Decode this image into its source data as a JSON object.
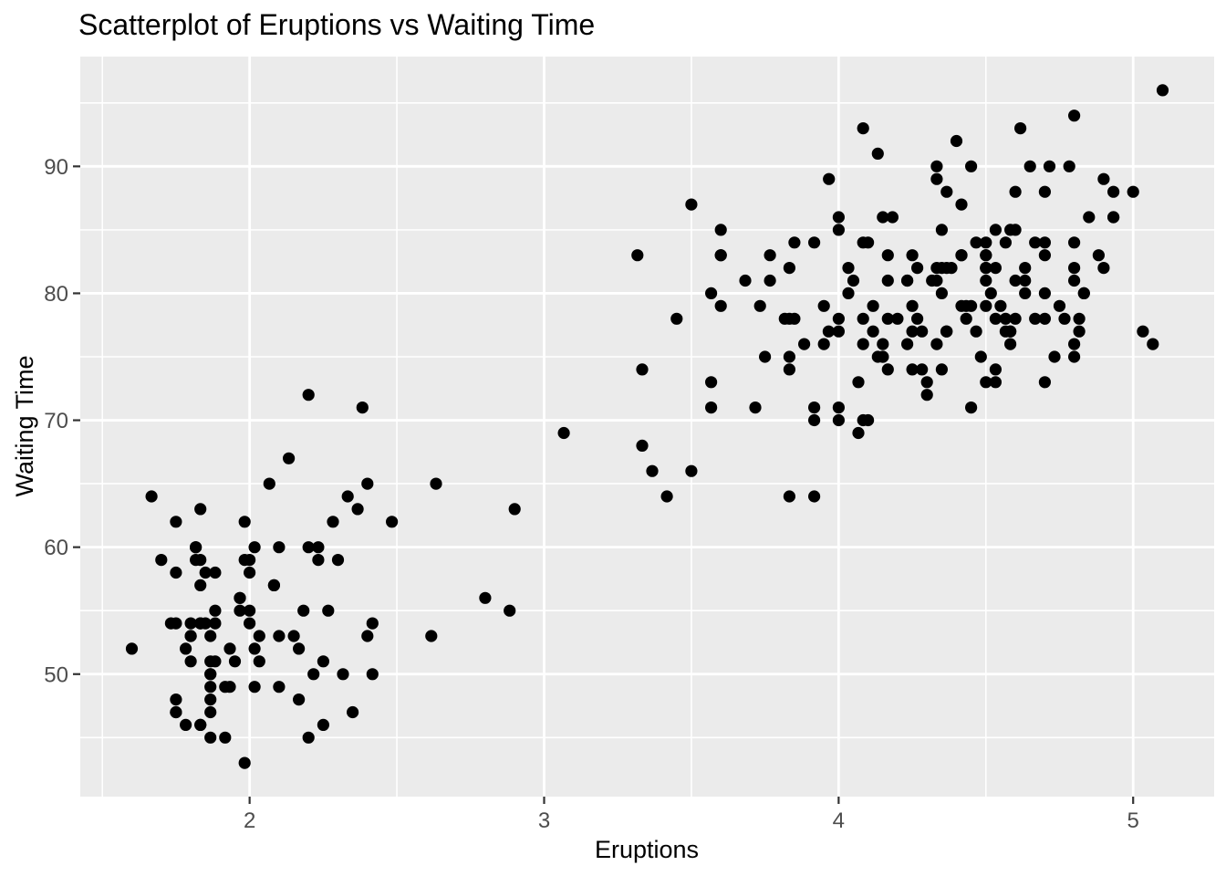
{
  "chart_data": {
    "type": "scatter",
    "title": "Scatterplot of Eruptions vs Waiting Time",
    "xlabel": "Eruptions",
    "ylabel": "Waiting Time",
    "xlim": [
      1.425,
      5.275
    ],
    "ylim": [
      40.35,
      98.65
    ],
    "x_ticks": [
      2,
      3,
      4,
      5
    ],
    "y_ticks": [
      50,
      60,
      70,
      80,
      90
    ],
    "x_minor_ticks": [
      1.5,
      2.5,
      3.5,
      4.5
    ],
    "y_minor_ticks": [
      45,
      55,
      65,
      75,
      85,
      95
    ],
    "grid": "major-and-minor",
    "legend_position": "none",
    "theme": {
      "background": "#FFFFFF",
      "panel_background": "#EBEBEB",
      "grid_color": "#FFFFFF",
      "point_color": "#000000",
      "tick_mark_color": "#333333",
      "axis_text_color": "#4D4D4D",
      "title_color": "#000000"
    },
    "points": [
      [
        3.6,
        79
      ],
      [
        1.8,
        54
      ],
      [
        3.333,
        74
      ],
      [
        2.283,
        62
      ],
      [
        4.533,
        85
      ],
      [
        2.883,
        55
      ],
      [
        4.7,
        88
      ],
      [
        3.6,
        85
      ],
      [
        1.95,
        51
      ],
      [
        4.35,
        85
      ],
      [
        1.833,
        54
      ],
      [
        3.917,
        84
      ],
      [
        4.2,
        78
      ],
      [
        1.75,
        47
      ],
      [
        4.7,
        83
      ],
      [
        2.167,
        52
      ],
      [
        1.75,
        62
      ],
      [
        4.8,
        84
      ],
      [
        1.6,
        52
      ],
      [
        4.25,
        79
      ],
      [
        1.8,
        51
      ],
      [
        1.75,
        47
      ],
      [
        3.45,
        78
      ],
      [
        3.067,
        69
      ],
      [
        4.533,
        74
      ],
      [
        3.6,
        83
      ],
      [
        1.967,
        55
      ],
      [
        4.083,
        76
      ],
      [
        3.85,
        78
      ],
      [
        4.433,
        79
      ],
      [
        4.3,
        73
      ],
      [
        4.467,
        77
      ],
      [
        3.367,
        66
      ],
      [
        4.033,
        80
      ],
      [
        3.833,
        74
      ],
      [
        2.017,
        52
      ],
      [
        1.867,
        48
      ],
      [
        4.833,
        80
      ],
      [
        1.833,
        59
      ],
      [
        4.783,
        90
      ],
      [
        4.35,
        80
      ],
      [
        1.883,
        58
      ],
      [
        4.567,
        84
      ],
      [
        1.75,
        58
      ],
      [
        4.533,
        73
      ],
      [
        3.317,
        83
      ],
      [
        3.833,
        64
      ],
      [
        2.1,
        53
      ],
      [
        4.633,
        82
      ],
      [
        2.0,
        59
      ],
      [
        4.8,
        75
      ],
      [
        4.716,
        90
      ],
      [
        1.833,
        54
      ],
      [
        4.833,
        80
      ],
      [
        1.733,
        54
      ],
      [
        4.883,
        83
      ],
      [
        3.717,
        71
      ],
      [
        1.667,
        64
      ],
      [
        4.567,
        77
      ],
      [
        4.317,
        81
      ],
      [
        2.233,
        59
      ],
      [
        4.5,
        84
      ],
      [
        1.75,
        48
      ],
      [
        4.8,
        82
      ],
      [
        1.817,
        60
      ],
      [
        4.4,
        92
      ],
      [
        4.167,
        78
      ],
      [
        4.7,
        78
      ],
      [
        2.067,
        65
      ],
      [
        4.7,
        73
      ],
      [
        4.033,
        82
      ],
      [
        1.967,
        56
      ],
      [
        4.5,
        79
      ],
      [
        4.0,
        71
      ],
      [
        1.983,
        62
      ],
      [
        5.067,
        76
      ],
      [
        2.017,
        60
      ],
      [
        4.567,
        78
      ],
      [
        3.883,
        76
      ],
      [
        3.6,
        83
      ],
      [
        4.133,
        75
      ],
      [
        4.333,
        82
      ],
      [
        4.1,
        70
      ],
      [
        2.633,
        65
      ],
      [
        4.067,
        73
      ],
      [
        4.933,
        88
      ],
      [
        3.95,
        76
      ],
      [
        4.517,
        80
      ],
      [
        2.167,
        48
      ],
      [
        4.0,
        86
      ],
      [
        2.2,
        60
      ],
      [
        4.333,
        90
      ],
      [
        1.867,
        50
      ],
      [
        4.817,
        78
      ],
      [
        1.833,
        63
      ],
      [
        4.3,
        72
      ],
      [
        4.667,
        84
      ],
      [
        3.75,
        75
      ],
      [
        1.867,
        51
      ],
      [
        4.9,
        82
      ],
      [
        2.483,
        62
      ],
      [
        4.367,
        88
      ],
      [
        2.1,
        49
      ],
      [
        4.5,
        83
      ],
      [
        4.05,
        81
      ],
      [
        1.867,
        47
      ],
      [
        4.7,
        84
      ],
      [
        1.783,
        52
      ],
      [
        4.85,
        86
      ],
      [
        3.683,
        81
      ],
      [
        4.733,
        75
      ],
      [
        2.3,
        59
      ],
      [
        4.9,
        89
      ],
      [
        4.417,
        79
      ],
      [
        1.7,
        59
      ],
      [
        4.633,
        81
      ],
      [
        2.317,
        50
      ],
      [
        4.6,
        85
      ],
      [
        1.817,
        59
      ],
      [
        4.417,
        87
      ],
      [
        2.617,
        53
      ],
      [
        4.067,
        69
      ],
      [
        4.25,
        77
      ],
      [
        1.967,
        56
      ],
      [
        4.6,
        88
      ],
      [
        3.767,
        81
      ],
      [
        1.917,
        45
      ],
      [
        4.5,
        82
      ],
      [
        2.267,
        55
      ],
      [
        4.65,
        90
      ],
      [
        1.867,
        45
      ],
      [
        4.167,
        83
      ],
      [
        2.8,
        56
      ],
      [
        4.333,
        89
      ],
      [
        1.833,
        46
      ],
      [
        4.383,
        82
      ],
      [
        1.883,
        51
      ],
      [
        4.933,
        86
      ],
      [
        2.033,
        53
      ],
      [
        3.733,
        79
      ],
      [
        4.233,
        81
      ],
      [
        2.233,
        60
      ],
      [
        4.533,
        82
      ],
      [
        4.817,
        77
      ],
      [
        4.333,
        76
      ],
      [
        1.983,
        59
      ],
      [
        4.633,
        80
      ],
      [
        2.017,
        49
      ],
      [
        5.1,
        96
      ],
      [
        1.8,
        53
      ],
      [
        5.033,
        77
      ],
      [
        4.0,
        77
      ],
      [
        2.4,
        65
      ],
      [
        4.6,
        81
      ],
      [
        3.567,
        71
      ],
      [
        4.0,
        70
      ],
      [
        4.5,
        81
      ],
      [
        4.083,
        93
      ],
      [
        1.8,
        53
      ],
      [
        3.967,
        89
      ],
      [
        2.2,
        45
      ],
      [
        4.15,
        86
      ],
      [
        2.0,
        58
      ],
      [
        3.833,
        78
      ],
      [
        3.5,
        66
      ],
      [
        4.583,
        76
      ],
      [
        2.367,
        63
      ],
      [
        5.0,
        88
      ],
      [
        1.933,
        52
      ],
      [
        4.617,
        93
      ],
      [
        1.917,
        49
      ],
      [
        2.083,
        57
      ],
      [
        4.583,
        77
      ],
      [
        3.333,
        68
      ],
      [
        4.167,
        81
      ],
      [
        4.333,
        81
      ],
      [
        4.5,
        73
      ],
      [
        2.417,
        50
      ],
      [
        4.0,
        85
      ],
      [
        4.167,
        74
      ],
      [
        1.883,
        55
      ],
      [
        4.583,
        77
      ],
      [
        4.25,
        83
      ],
      [
        3.767,
        83
      ],
      [
        2.033,
        51
      ],
      [
        4.433,
        78
      ],
      [
        4.083,
        84
      ],
      [
        1.833,
        46
      ],
      [
        4.417,
        83
      ],
      [
        2.183,
        55
      ],
      [
        4.8,
        81
      ],
      [
        1.833,
        57
      ],
      [
        4.8,
        76
      ],
      [
        4.1,
        84
      ],
      [
        3.966,
        77
      ],
      [
        4.233,
        81
      ],
      [
        3.5,
        87
      ],
      [
        4.366,
        77
      ],
      [
        2.25,
        51
      ],
      [
        4.667,
        78
      ],
      [
        2.1,
        60
      ],
      [
        4.35,
        82
      ],
      [
        4.133,
        91
      ],
      [
        1.867,
        53
      ],
      [
        4.6,
        78
      ],
      [
        1.783,
        46
      ],
      [
        4.367,
        77
      ],
      [
        3.85,
        84
      ],
      [
        1.933,
        49
      ],
      [
        4.5,
        83
      ],
      [
        2.383,
        71
      ],
      [
        4.7,
        80
      ],
      [
        1.867,
        49
      ],
      [
        3.833,
        75
      ],
      [
        3.417,
        64
      ],
      [
        4.233,
        76
      ],
      [
        2.4,
        53
      ],
      [
        4.8,
        94
      ],
      [
        2.0,
        55
      ],
      [
        4.15,
        76
      ],
      [
        1.867,
        50
      ],
      [
        4.267,
        82
      ],
      [
        1.75,
        54
      ],
      [
        4.483,
        75
      ],
      [
        4.0,
        78
      ],
      [
        4.117,
        79
      ],
      [
        4.083,
        78
      ],
      [
        4.267,
        78
      ],
      [
        3.917,
        70
      ],
      [
        4.55,
        79
      ],
      [
        4.083,
        70
      ],
      [
        2.417,
        54
      ],
      [
        4.183,
        86
      ],
      [
        2.217,
        50
      ],
      [
        4.45,
        90
      ],
      [
        1.883,
        54
      ],
      [
        1.85,
        54
      ],
      [
        4.283,
        77
      ],
      [
        3.95,
        79
      ],
      [
        2.333,
        64
      ],
      [
        4.15,
        75
      ],
      [
        2.35,
        47
      ],
      [
        4.933,
        86
      ],
      [
        2.9,
        63
      ],
      [
        4.583,
        85
      ],
      [
        3.833,
        82
      ],
      [
        2.083,
        57
      ],
      [
        4.367,
        82
      ],
      [
        2.133,
        67
      ],
      [
        4.35,
        74
      ],
      [
        2.2,
        72
      ],
      [
        4.45,
        79
      ],
      [
        3.567,
        80
      ],
      [
        4.5,
        82
      ],
      [
        4.15,
        75
      ],
      [
        3.817,
        78
      ],
      [
        3.917,
        64
      ],
      [
        4.45,
        71
      ],
      [
        2.0,
        54
      ],
      [
        4.283,
        74
      ],
      [
        4.767,
        78
      ],
      [
        4.533,
        78
      ],
      [
        1.85,
        58
      ],
      [
        4.25,
        74
      ],
      [
        1.983,
        43
      ],
      [
        2.25,
        46
      ],
      [
        4.75,
        79
      ],
      [
        4.117,
        77
      ],
      [
        2.15,
        53
      ],
      [
        4.417,
        83
      ],
      [
        1.817,
        60
      ],
      [
        4.467,
        84
      ],
      [
        3.567,
        73
      ],
      [
        3.917,
        71
      ]
    ]
  }
}
